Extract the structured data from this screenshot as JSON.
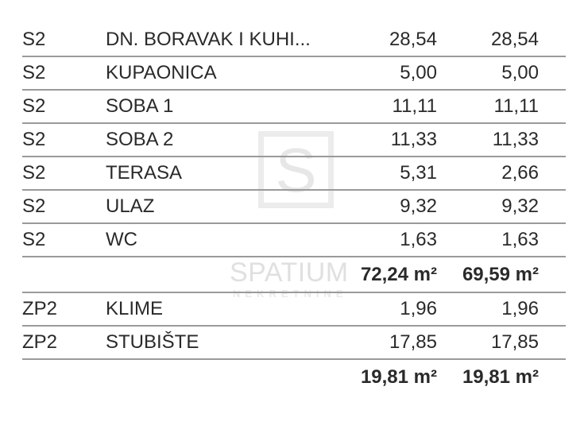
{
  "colors": {
    "background": "#ffffff",
    "text": "#2a2a2a",
    "row_line": "#9a9a9a",
    "watermark": "#e7e7e7"
  },
  "watermark": {
    "logo_letter": "S",
    "brand": "SPATIUM",
    "subtitle": "NEKRETNINE"
  },
  "table": {
    "unit_codes": [
      "S2",
      "ZP2"
    ],
    "area_unit": "m²",
    "rows": [
      {
        "type": "item",
        "code": "S2",
        "name": "DN. BORAVAK I KUHI...",
        "value1": "28,54",
        "value2": "28,54"
      },
      {
        "type": "item",
        "code": "S2",
        "name": "KUPAONICA",
        "value1": "5,00",
        "value2": "5,00"
      },
      {
        "type": "item",
        "code": "S2",
        "name": "SOBA 1",
        "value1": "11,11",
        "value2": "11,11"
      },
      {
        "type": "item",
        "code": "S2",
        "name": "SOBA 2",
        "value1": "11,33",
        "value2": "11,33"
      },
      {
        "type": "item",
        "code": "S2",
        "name": "TERASA",
        "value1": "5,31",
        "value2": "2,66"
      },
      {
        "type": "item",
        "code": "S2",
        "name": "ULAZ",
        "value1": "9,32",
        "value2": "9,32"
      },
      {
        "type": "item",
        "code": "S2",
        "name": "WC",
        "value1": "1,63",
        "value2": "1,63"
      },
      {
        "type": "subtotal",
        "code": "",
        "name": "",
        "value1": "72,24 m²",
        "value2": "69,59 m²"
      },
      {
        "type": "item",
        "code": "ZP2",
        "name": "KLIME",
        "value1": "1,96",
        "value2": "1,96"
      },
      {
        "type": "item",
        "code": "ZP2",
        "name": "STUBIŠTE",
        "value1": "17,85",
        "value2": "17,85"
      },
      {
        "type": "subtotal",
        "code": "",
        "name": "",
        "value1": "19,81 m²",
        "value2": "19,81 m²"
      }
    ]
  }
}
